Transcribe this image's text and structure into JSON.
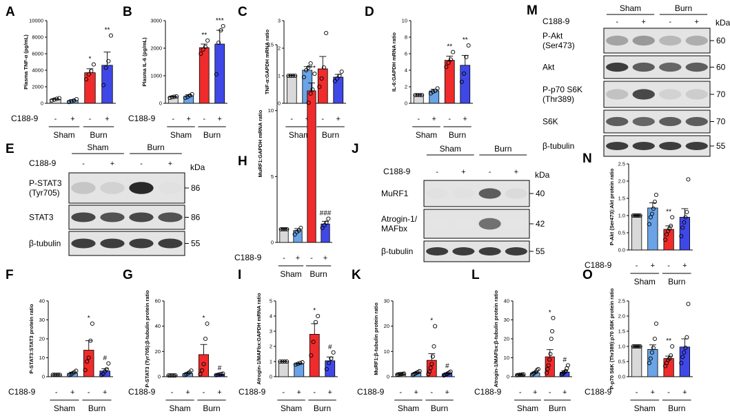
{
  "figure": {
    "treatment_label": "C188-9",
    "group_sham": "Sham",
    "group_burn": "Burn",
    "plus": "+",
    "minus": "-",
    "kda": "kDa",
    "colors": {
      "sham_vehicle": "#d9d9d9",
      "sham_c188": "#6aa3e6",
      "burn_vehicle": "#ef2b2b",
      "burn_c188": "#3f48e6"
    }
  },
  "chart_data": [
    {
      "panel": "A",
      "type": "bar",
      "ylabel": "Plasma TNF-α (pg/mL)",
      "ylim": [
        0,
        10000
      ],
      "yticks": [
        0,
        2000,
        4000,
        6000,
        8000,
        10000
      ],
      "categories": [
        "Sham -",
        "Sham +",
        "Burn -",
        "Burn +"
      ],
      "values": [
        480,
        320,
        3700,
        4600
      ],
      "errors": [
        90,
        120,
        480,
        1600
      ],
      "points": [
        [
          350,
          450,
          550,
          620
        ],
        [
          150,
          250,
          350,
          500
        ],
        [
          2900,
          3500,
          3900,
          4700
        ],
        [
          2200,
          4300,
          5100,
          8200
        ]
      ],
      "annotations": [
        "",
        "",
        "*",
        "**"
      ]
    },
    {
      "panel": "B",
      "type": "bar",
      "ylabel": "Plasma IL-6 (pg/mL)",
      "ylim": [
        0,
        3000
      ],
      "yticks": [
        0,
        1000,
        2000,
        3000
      ],
      "categories": [
        "Sham -",
        "Sham +",
        "Burn -",
        "Burn +"
      ],
      "values": [
        230,
        260,
        2020,
        2150
      ],
      "errors": [
        20,
        50,
        130,
        500
      ],
      "points": [
        [
          200,
          220,
          240,
          250
        ],
        [
          200,
          230,
          280,
          330
        ],
        [
          1800,
          1950,
          2050,
          2280
        ],
        [
          1050,
          2200,
          2650,
          2800
        ]
      ],
      "annotations": [
        "",
        "",
        "**",
        "***"
      ]
    },
    {
      "panel": "C",
      "type": "bar",
      "ylabel": "TNF-α:GAPDH mRNA ratio",
      "ylim": [
        0,
        3
      ],
      "yticks": [
        0,
        1,
        2,
        3
      ],
      "categories": [
        "Sham -",
        "Sham +",
        "Burn -",
        "Burn +"
      ],
      "values": [
        1.0,
        1.2,
        1.25,
        0.95
      ],
      "errors": [
        0.02,
        0.13,
        0.45,
        0.1
      ],
      "points": [
        [
          1.0,
          1.0,
          1.0,
          1.0
        ],
        [
          0.95,
          1.2,
          1.3,
          1.45
        ],
        [
          0.6,
          0.9,
          1.3,
          2.55
        ],
        [
          0.8,
          0.9,
          1.0,
          1.15
        ]
      ],
      "annotations": [
        "",
        "",
        "",
        ""
      ]
    },
    {
      "panel": "D",
      "type": "bar",
      "ylabel": "IL-6:GAPDH mRNA ratio",
      "ylim": [
        0,
        10
      ],
      "yticks": [
        0,
        2,
        4,
        6,
        8,
        10
      ],
      "categories": [
        "Sham -",
        "Sham +",
        "Burn -",
        "Burn +"
      ],
      "values": [
        1.0,
        1.5,
        5.2,
        4.6
      ],
      "errors": [
        0.05,
        0.2,
        0.5,
        1.2
      ],
      "points": [
        [
          1.0,
          1.0,
          1.0,
          1.0
        ],
        [
          1.2,
          1.4,
          1.5,
          1.8
        ],
        [
          4.4,
          4.9,
          5.3,
          6.2
        ],
        [
          2.6,
          3.6,
          5.6,
          7.0
        ]
      ],
      "annotations": [
        "",
        "",
        "**",
        "**"
      ]
    },
    {
      "panel": "H",
      "type": "bar",
      "ylabel": "MuRF1:GAPDH mRNA ratio",
      "ylim": [
        0,
        15
      ],
      "yticks": [
        0,
        5,
        10,
        15
      ],
      "categories": [
        "Sham -",
        "Sham +",
        "Burn -",
        "Burn +"
      ],
      "values": [
        1.0,
        0.9,
        11.5,
        1.4
      ],
      "errors": [
        0.05,
        0.15,
        0.6,
        0.2
      ],
      "points": [
        [
          1.0,
          1.0,
          1.0,
          1.0
        ],
        [
          0.6,
          0.8,
          0.9,
          1.1
        ],
        [
          10.6,
          11.3,
          11.6,
          12.8
        ],
        [
          1.1,
          1.3,
          1.5,
          1.8
        ]
      ],
      "annotations": [
        "",
        "",
        "***",
        "###"
      ]
    },
    {
      "panel": "F",
      "type": "bar",
      "ylabel": "P-STAT3:STAT3 protein ratio",
      "ylim": [
        0,
        40
      ],
      "yticks": [
        0,
        10,
        20,
        30,
        40
      ],
      "categories": [
        "Sham -",
        "Sham +",
        "Burn -",
        "Burn +"
      ],
      "values": [
        1.0,
        1.8,
        14.0,
        3.0
      ],
      "errors": [
        0.1,
        0.6,
        5.0,
        1.2
      ],
      "points": [
        [
          1.0,
          1.0,
          1.0,
          1.0,
          1.0
        ],
        [
          0.8,
          1.2,
          1.8,
          2.4,
          3.1
        ],
        [
          3.5,
          8.0,
          10.0,
          19.0,
          28.0
        ],
        [
          0.8,
          1.5,
          2.8,
          4.0,
          7.0
        ]
      ],
      "annotations": [
        "",
        "",
        "*",
        "#"
      ]
    },
    {
      "panel": "G",
      "type": "bar",
      "ylabel": "P-STAT3 (Tyr705):β-tubulin protein ratio",
      "ylim": [
        0,
        60
      ],
      "yticks": [
        0,
        20,
        40,
        60
      ],
      "categories": [
        "Sham -",
        "Sham +",
        "Burn -",
        "Burn +"
      ],
      "values": [
        1.0,
        2.5,
        17.5,
        1.8
      ],
      "errors": [
        0.1,
        0.8,
        8.0,
        0.3
      ],
      "points": [
        [
          1.0,
          1.0,
          1.0,
          1.0,
          1.0
        ],
        [
          1.2,
          1.8,
          2.6,
          3.5,
          4.8
        ],
        [
          2.0,
          5.0,
          10.0,
          30.0,
          42.0
        ],
        [
          1.2,
          1.5,
          1.8,
          2.1,
          2.4
        ]
      ],
      "annotations": [
        "",
        "",
        "*",
        "#"
      ]
    },
    {
      "panel": "I",
      "type": "bar",
      "ylabel": "Atrogin-1/MAFbx:GAPDH mRNA ratio",
      "ylim": [
        0,
        5
      ],
      "yticks": [
        0,
        1,
        2,
        3,
        4,
        5
      ],
      "categories": [
        "Sham -",
        "Sham +",
        "Burn -",
        "Burn +"
      ],
      "values": [
        1.0,
        0.85,
        2.8,
        1.05
      ],
      "errors": [
        0.02,
        0.05,
        0.7,
        0.25
      ],
      "points": [
        [
          1.0,
          1.0,
          1.0,
          1.0
        ],
        [
          0.8,
          0.85,
          0.9,
          0.95
        ],
        [
          1.4,
          2.3,
          3.6,
          4.0
        ],
        [
          0.5,
          0.9,
          1.2,
          1.6
        ]
      ],
      "annotations": [
        "",
        "",
        "*",
        "#"
      ]
    },
    {
      "panel": "K",
      "type": "bar",
      "ylabel": "MuRF1:β-tubulin protein ratio",
      "ylim": [
        0,
        30
      ],
      "yticks": [
        0,
        10,
        20,
        30
      ],
      "categories": [
        "Sham -",
        "Sham +",
        "Burn -",
        "Burn +"
      ],
      "values": [
        1.0,
        1.4,
        6.5,
        1.2
      ],
      "errors": [
        0.1,
        0.3,
        2.6,
        0.3
      ],
      "points": [
        [
          0.8,
          0.9,
          1.0,
          1.0,
          1.1,
          1.2
        ],
        [
          0.6,
          1.0,
          1.3,
          1.6,
          1.8,
          2.2
        ],
        [
          1.0,
          2.0,
          3.5,
          5.0,
          8.0,
          12.0,
          20.0
        ],
        [
          0.5,
          0.8,
          1.0,
          1.3,
          1.6,
          2.0
        ]
      ],
      "annotations": [
        "",
        "",
        "*",
        "#"
      ]
    },
    {
      "panel": "L",
      "type": "bar",
      "ylabel": "Atrogin-1/MAFbx:β-tubulin protein ratio",
      "ylim": [
        0,
        40
      ],
      "yticks": [
        0,
        10,
        20,
        30,
        40
      ],
      "categories": [
        "Sham -",
        "Sham +",
        "Burn -",
        "Burn +"
      ],
      "values": [
        1.0,
        2.0,
        10.5,
        2.4
      ],
      "errors": [
        0.1,
        0.5,
        3.8,
        0.7
      ],
      "points": [
        [
          0.8,
          0.9,
          1.0,
          1.0,
          1.1,
          1.2
        ],
        [
          0.8,
          1.5,
          2.0,
          2.5,
          3.5,
          4.0
        ],
        [
          2.0,
          4.0,
          6.0,
          9.0,
          12.0,
          20.0,
          24.0,
          31.0
        ],
        [
          1.0,
          1.5,
          2.0,
          2.5,
          3.0,
          4.5,
          6.0
        ]
      ],
      "annotations": [
        "",
        "",
        "*",
        "#"
      ]
    },
    {
      "panel": "N",
      "type": "bar",
      "ylabel": "P-Akt (Ser473):Akt protein ratio",
      "ylim": [
        0,
        2.5
      ],
      "yticks": [
        0.0,
        0.5,
        1.0,
        1.5,
        2.0,
        2.5
      ],
      "categories": [
        "Sham -",
        "Sham +",
        "Burn -",
        "Burn +"
      ],
      "values": [
        1.0,
        1.22,
        0.6,
        0.95
      ],
      "errors": [
        0.01,
        0.15,
        0.1,
        0.25
      ],
      "points": [
        [
          1.0,
          1.0,
          1.0,
          1.0,
          1.0,
          1.0
        ],
        [
          0.75,
          0.95,
          1.05,
          1.2,
          1.4,
          1.6
        ],
        [
          0.3,
          0.45,
          0.55,
          0.62,
          0.7,
          0.95
        ],
        [
          0.4,
          0.65,
          0.8,
          0.95,
          1.1,
          2.05
        ]
      ],
      "annotations": [
        "",
        "",
        "**",
        ""
      ]
    },
    {
      "panel": "O",
      "type": "bar",
      "ylabel": "P-p70 S6K (Thr389):p70 S6K protein ratio",
      "ylim": [
        0,
        2.5
      ],
      "yticks": [
        0.0,
        0.5,
        1.0,
        1.5,
        2.0,
        2.5
      ],
      "categories": [
        "Sham -",
        "Sham +",
        "Burn -",
        "Burn +"
      ],
      "values": [
        1.0,
        0.9,
        0.6,
        0.98
      ],
      "errors": [
        0.01,
        0.15,
        0.08,
        0.27
      ],
      "points": [
        [
          1.0,
          1.0,
          1.0,
          1.0,
          1.0,
          1.0
        ],
        [
          0.45,
          0.6,
          0.8,
          0.95,
          1.25,
          1.75
        ],
        [
          0.35,
          0.45,
          0.55,
          0.6,
          0.7,
          1.0
        ],
        [
          0.45,
          0.65,
          0.8,
          0.95,
          1.3,
          2.4
        ]
      ],
      "annotations": [
        "",
        "",
        "**",
        ""
      ]
    }
  ],
  "blots": {
    "E": {
      "group_sham": "Sham",
      "group_burn": "Burn",
      "rows": [
        {
          "label": "P-STAT3\n(Tyr705)",
          "kda": "86",
          "lanes": [
            0.18,
            0.12,
            0.95,
            0.05
          ]
        },
        {
          "label": "STAT3",
          "kda": "86",
          "lanes": [
            0.8,
            0.75,
            0.8,
            0.75
          ]
        },
        {
          "label": "β-tubulin",
          "kda": "55",
          "lanes": [
            0.85,
            0.85,
            0.85,
            0.85
          ]
        }
      ]
    },
    "J": {
      "group_sham": "Sham",
      "group_burn": "Burn",
      "rows": [
        {
          "label": "MuRF1",
          "kda": "40",
          "lanes": [
            0.05,
            0.05,
            0.7,
            0.08
          ]
        },
        {
          "label": "Atrogin-1/\nMAFbx",
          "kda": "42",
          "lanes": [
            0.03,
            0.03,
            0.6,
            0.03
          ]
        },
        {
          "label": "β-tubulin",
          "kda": "55",
          "lanes": [
            0.85,
            0.85,
            0.85,
            0.85
          ]
        }
      ]
    },
    "M": {
      "group_sham": "Sham",
      "group_burn": "Burn",
      "rows": [
        {
          "label": "P-Akt\n(Ser473)",
          "kda": "60",
          "lanes": [
            0.35,
            0.4,
            0.25,
            0.3
          ]
        },
        {
          "label": "Akt",
          "kda": "60",
          "lanes": [
            0.85,
            0.7,
            0.65,
            0.7
          ]
        },
        {
          "label": "P-p70 S6K\n(Thr389)",
          "kda": "70",
          "lanes": [
            0.2,
            0.8,
            0.12,
            0.15
          ]
        },
        {
          "label": "S6K",
          "kda": "70",
          "lanes": [
            0.7,
            0.65,
            0.7,
            0.7
          ]
        },
        {
          "label": "β-tubulin",
          "kda": "55",
          "lanes": [
            0.85,
            0.85,
            0.85,
            0.85
          ]
        }
      ]
    }
  }
}
